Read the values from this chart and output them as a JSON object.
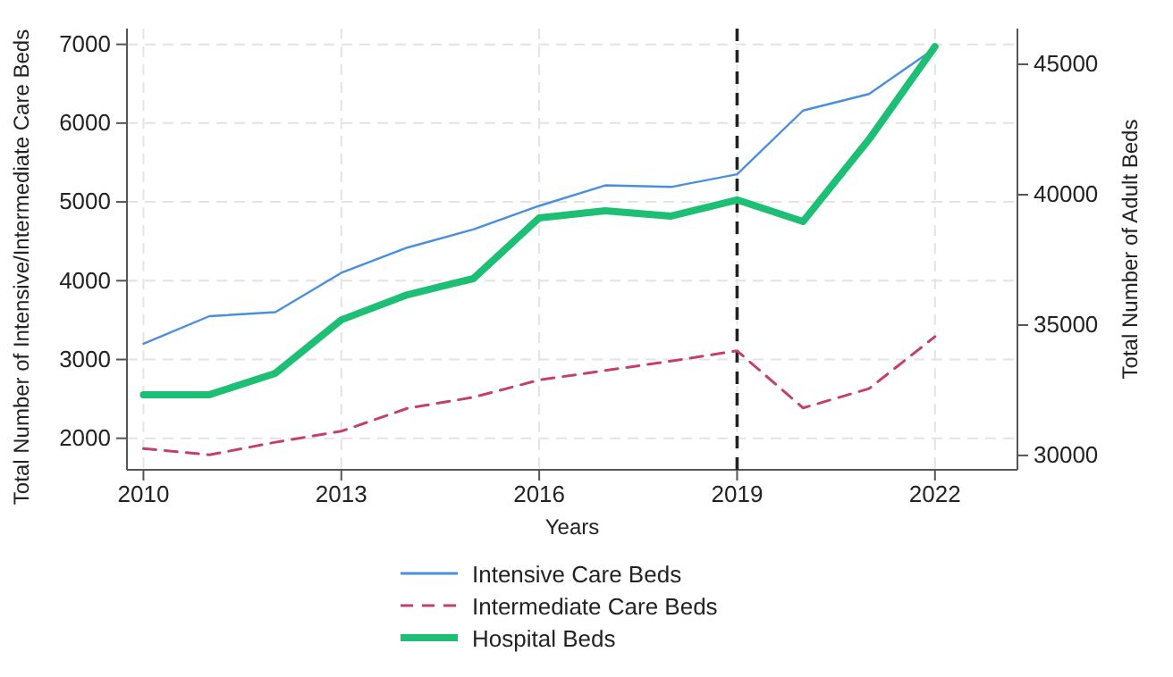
{
  "chart_data": {
    "type": "line",
    "xlabel": "Years",
    "ylabel": "Total Number of Intensive/Intermediate Care Beds",
    "y2label": "Total Number of Adult Beds",
    "x": [
      2010,
      2011,
      2012,
      2013,
      2014,
      2015,
      2016,
      2017,
      2018,
      2019,
      2020,
      2021,
      2022
    ],
    "xlim": [
      2009.75,
      2023.25
    ],
    "xticks": [
      2010,
      2013,
      2016,
      2019,
      2022
    ],
    "ylim": [
      1600,
      7200
    ],
    "yticks": [
      2000,
      3000,
      4000,
      5000,
      6000,
      7000
    ],
    "y2lim": [
      29450,
      46370
    ],
    "y2ticks": [
      30000,
      35000,
      40000,
      45000
    ],
    "grid": true,
    "legend": "bottom",
    "marker": "none",
    "ref_lines": [
      {
        "axis": "x",
        "value": 2019,
        "color": "#222222",
        "line_style": "dashed"
      }
    ],
    "series": [
      {
        "name": "Intensive Care Beds",
        "color": "#4a8fdc",
        "line_style": "solid",
        "values": [
          3200,
          3550,
          3600,
          4100,
          4420,
          4650,
          4950,
          5210,
          5190,
          5350,
          6160,
          6370,
          6950
        ]
      },
      {
        "name": "Intermediate Care Beds",
        "color": "#c2416b",
        "line_style": "dashed",
        "values": [
          1870,
          1790,
          1950,
          2090,
          2380,
          2520,
          2740,
          2860,
          2980,
          3110,
          2385,
          2630,
          3290
        ]
      },
      {
        "name": "Hospital Beds",
        "color": "#1dbf74",
        "line_style": "solid",
        "axis": "y2",
        "values": [
          32330,
          32330,
          33150,
          35200,
          36160,
          36780,
          39110,
          39380,
          39180,
          39800,
          38970,
          42120,
          45680
        ]
      }
    ]
  }
}
